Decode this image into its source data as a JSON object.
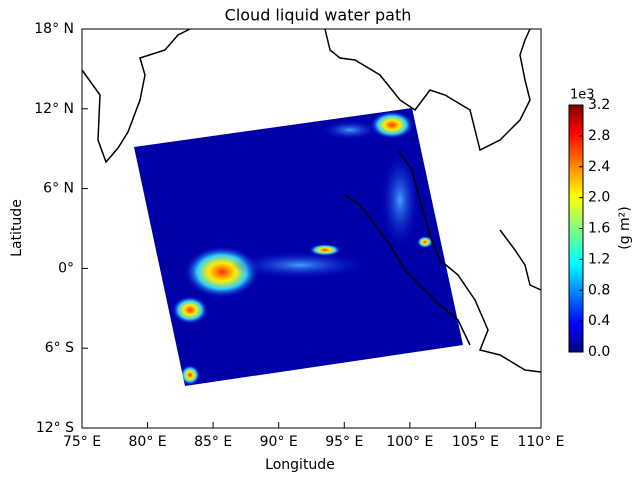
{
  "chart_data": {
    "type": "map",
    "title": "Cloud liquid water path",
    "xlabel": "Longitude",
    "ylabel": "Latitude",
    "xlim": [
      75,
      110
    ],
    "ylim": [
      -12,
      18
    ],
    "xticks": [
      {
        "value": 75,
        "label": "75° E"
      },
      {
        "value": 80,
        "label": "80° E"
      },
      {
        "value": 85,
        "label": "85° E"
      },
      {
        "value": 90,
        "label": "90° E"
      },
      {
        "value": 95,
        "label": "95° E"
      },
      {
        "value": 100,
        "label": "100° E"
      },
      {
        "value": 105,
        "label": "105° E"
      },
      {
        "value": 110,
        "label": "110° E"
      }
    ],
    "yticks": [
      {
        "value": 18,
        "label": "18° N"
      },
      {
        "value": 12,
        "label": "12° N"
      },
      {
        "value": 6,
        "label": "6° N"
      },
      {
        "value": 0,
        "label": "0°"
      },
      {
        "value": -6,
        "label": "6° S"
      },
      {
        "value": -12,
        "label": "12° S"
      }
    ],
    "colorbar": {
      "label": "(g m²)",
      "offset_label": "1e3",
      "lim": [
        0,
        3.2
      ],
      "ticks": [
        {
          "value": 0,
          "label": "0.0"
        },
        0.4,
        0.8,
        1.2,
        1.6,
        {
          "value": 2,
          "label": "2.0"
        },
        2.4,
        2.8,
        3.2
      ]
    }
  }
}
